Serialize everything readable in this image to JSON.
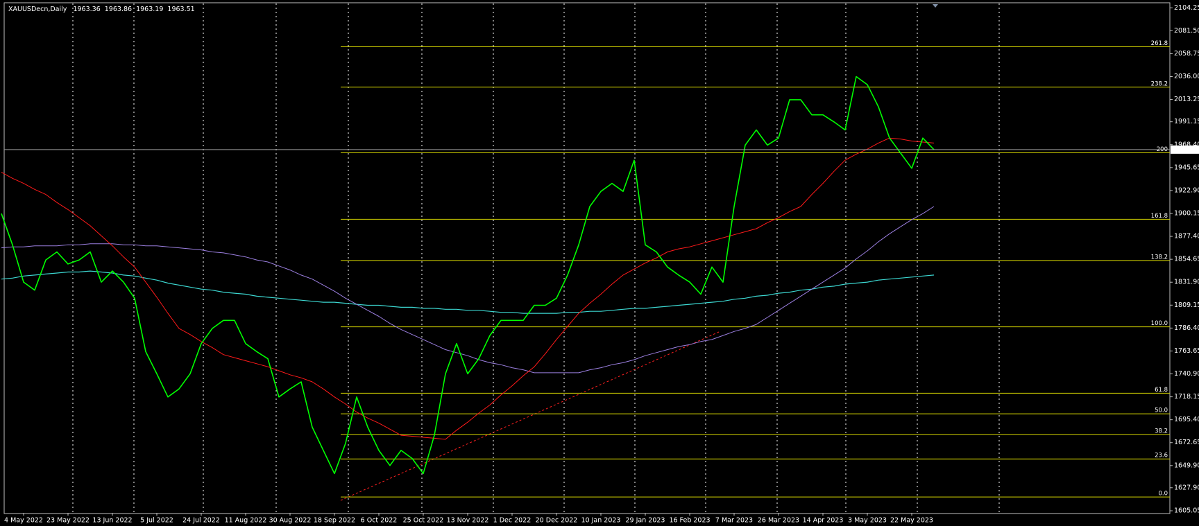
{
  "chart_data": {
    "type": "line",
    "title": "XAUUSDecn,Daily",
    "ohlc": [
      1963.36,
      1963.86,
      1963.19,
      1963.51
    ],
    "categories": [
      null,
      null,
      "4 May 2022",
      null,
      null,
      null,
      "23 May 2022",
      null,
      null,
      null,
      "13 Jun 2022",
      null,
      null,
      null,
      "5 Jul 2022",
      null,
      null,
      null,
      "24 Jul 2022",
      null,
      null,
      null,
      "11 Aug 2022",
      null,
      null,
      null,
      "30 Aug 2022",
      null,
      null,
      null,
      "18 Sep 2022",
      null,
      null,
      null,
      "6 Oct 2022",
      null,
      null,
      null,
      "25 Oct 2022",
      null,
      null,
      null,
      "13 Nov 2022",
      null,
      null,
      null,
      "1 Dec 2022",
      null,
      null,
      null,
      "20 Dec 2022",
      null,
      null,
      null,
      "10 Jan 2023",
      null,
      null,
      null,
      "29 Jan 2023",
      null,
      null,
      null,
      "16 Feb 2023",
      null,
      null,
      null,
      "7 Mar 2023",
      null,
      null,
      null,
      "26 Mar 2023",
      null,
      null,
      null,
      "14 Apr 2023",
      null,
      null,
      null,
      "3 May 2023",
      null,
      null,
      null,
      "22 May 2023",
      null,
      null
    ],
    "series": [
      {
        "color": "#00ff00",
        "width": 1.6,
        "values": [
          1900,
          1869,
          1832,
          1824,
          1854,
          1862,
          1850,
          1854,
          1862,
          1832,
          1843,
          1832,
          1816,
          1763,
          1741,
          1718,
          1726,
          1741,
          1771,
          1786,
          1794,
          1794,
          1771,
          1763,
          1756,
          1718,
          1726,
          1733,
          1688,
          1665,
          1642,
          1672,
          1718,
          1688,
          1665,
          1650,
          1665,
          1657,
          1642,
          1680,
          1741,
          1771,
          1741,
          1756,
          1779,
          1794,
          1794,
          1794,
          1809,
          1809,
          1816,
          1839,
          1869,
          1907,
          1922,
          1930,
          1922,
          1953,
          1869,
          1862,
          1847,
          1839,
          1832,
          1820,
          1847,
          1832,
          1907,
          1968,
          1983,
          1968,
          1975,
          2013,
          2013,
          1998,
          1998,
          1991,
          1983,
          2036,
          2028,
          2006,
          1975,
          1960,
          1945,
          1975,
          1963.51
        ]
      },
      {
        "color": "#ff1a1a",
        "width": 1,
        "values": [
          1941,
          1935,
          1930,
          1924,
          1919,
          1911,
          1904,
          1896,
          1888,
          1878,
          1868,
          1857,
          1847,
          1832,
          1817,
          1801,
          1786,
          1780,
          1773,
          1767,
          1760,
          1757,
          1754,
          1751,
          1748,
          1744,
          1740,
          1737,
          1733,
          1726,
          1718,
          1711,
          1703,
          1697,
          1692,
          1686,
          1680,
          1679,
          1678,
          1677,
          1676,
          1685,
          1693,
          1702,
          1710,
          1720,
          1729,
          1739,
          1748,
          1761,
          1775,
          1788,
          1801,
          1811,
          1820,
          1830,
          1839,
          1845,
          1851,
          1856,
          1862,
          1865,
          1867,
          1870,
          1873,
          1876,
          1879,
          1882,
          1885,
          1891,
          1896,
          1902,
          1907,
          1919,
          1930,
          1942,
          1953,
          1959,
          1964,
          1970,
          1975,
          1974,
          1972,
          1971,
          1970
        ]
      },
      {
        "color": "#9b7fe0",
        "width": 1,
        "values": [
          1866,
          1867,
          1867,
          1868,
          1868,
          1868,
          1869,
          1869,
          1870,
          1870,
          1870,
          1869,
          1869,
          1868,
          1868,
          1867,
          1866,
          1865,
          1864,
          1862,
          1861,
          1859,
          1857,
          1854,
          1852,
          1848,
          1844,
          1839,
          1835,
          1829,
          1823,
          1816,
          1810,
          1804,
          1798,
          1791,
          1785,
          1780,
          1775,
          1770,
          1765,
          1762,
          1759,
          1755,
          1752,
          1750,
          1747,
          1745,
          1742,
          1742,
          1742,
          1742,
          1742,
          1745,
          1747,
          1750,
          1752,
          1755,
          1759,
          1762,
          1765,
          1768,
          1770,
          1773,
          1775,
          1779,
          1783,
          1786,
          1790,
          1797,
          1804,
          1811,
          1818,
          1825,
          1832,
          1839,
          1846,
          1855,
          1863,
          1872,
          1880,
          1887,
          1894,
          1900,
          1907
        ]
      },
      {
        "color": "#3cd6d0",
        "width": 1.2,
        "values": [
          1835,
          1836,
          1838,
          1839,
          1840,
          1841,
          1842,
          1842,
          1843,
          1842,
          1841,
          1839,
          1838,
          1836,
          1834,
          1831,
          1829,
          1827,
          1825,
          1824,
          1822,
          1821,
          1820,
          1818,
          1817,
          1816,
          1815,
          1814,
          1813,
          1812,
          1812,
          1811,
          1810,
          1809,
          1809,
          1808,
          1807,
          1807,
          1806,
          1806,
          1805,
          1805,
          1804,
          1804,
          1803,
          1802,
          1802,
          1801,
          1801,
          1801,
          1801,
          1802,
          1802,
          1803,
          1803,
          1804,
          1805,
          1806,
          1806,
          1807,
          1808,
          1809,
          1810,
          1811,
          1812,
          1813,
          1815,
          1816,
          1818,
          1819,
          1821,
          1822,
          1824,
          1825,
          1827,
          1828,
          1830,
          1831,
          1832,
          1834,
          1835,
          1836,
          1837,
          1838,
          1839
        ]
      }
    ],
    "fibo_color": "#d8d800",
    "fibo_levels": [
      {
        "label": "261.8",
        "value": 2065.6
      },
      {
        "label": "238.2",
        "value": 2025.5
      },
      {
        "label": "200",
        "value": 1960.3
      },
      {
        "label": "161.8",
        "value": 1894.4
      },
      {
        "label": "138.2",
        "value": 1853.5
      },
      {
        "label": "100.0",
        "value": 1787.6
      },
      {
        "label": "61.8",
        "value": 1721.7
      },
      {
        "label": "50.0",
        "value": 1701.3
      },
      {
        "label": "38.2",
        "value": 1680.8
      },
      {
        "label": "23.6",
        "value": 1656.5
      },
      {
        "label": "0.0",
        "value": 1618.7
      }
    ],
    "ylim": [
      1603,
      2112
    ],
    "yticks": [
      2104.25,
      {
        "value": 2081.5,
        "label": "2081.50"
      },
      2058.75,
      {
        "value": 2036,
        "label": "2036.00"
      },
      2013.25,
      1991.15,
      {
        "value": 1968.4,
        "label": "1968.40"
      },
      1945.65,
      {
        "value": 1922.9,
        "label": "1922.90"
      },
      1900.15,
      {
        "value": 1877.4,
        "label": "1877.40"
      },
      1854.65,
      {
        "value": 1831.9,
        "label": "1831.90"
      },
      1809.15,
      {
        "value": 1786.4,
        "label": "1786.40"
      },
      1763.65,
      {
        "value": 1740.9,
        "label": "1740.90"
      },
      1718.15,
      {
        "value": 1695.4,
        "label": "1695.40"
      },
      1672.65,
      {
        "value": 1649.9,
        "label": "1649.90"
      },
      {
        "value": 1627.9,
        "label": "1627.90"
      },
      1605.05
    ]
  }
}
